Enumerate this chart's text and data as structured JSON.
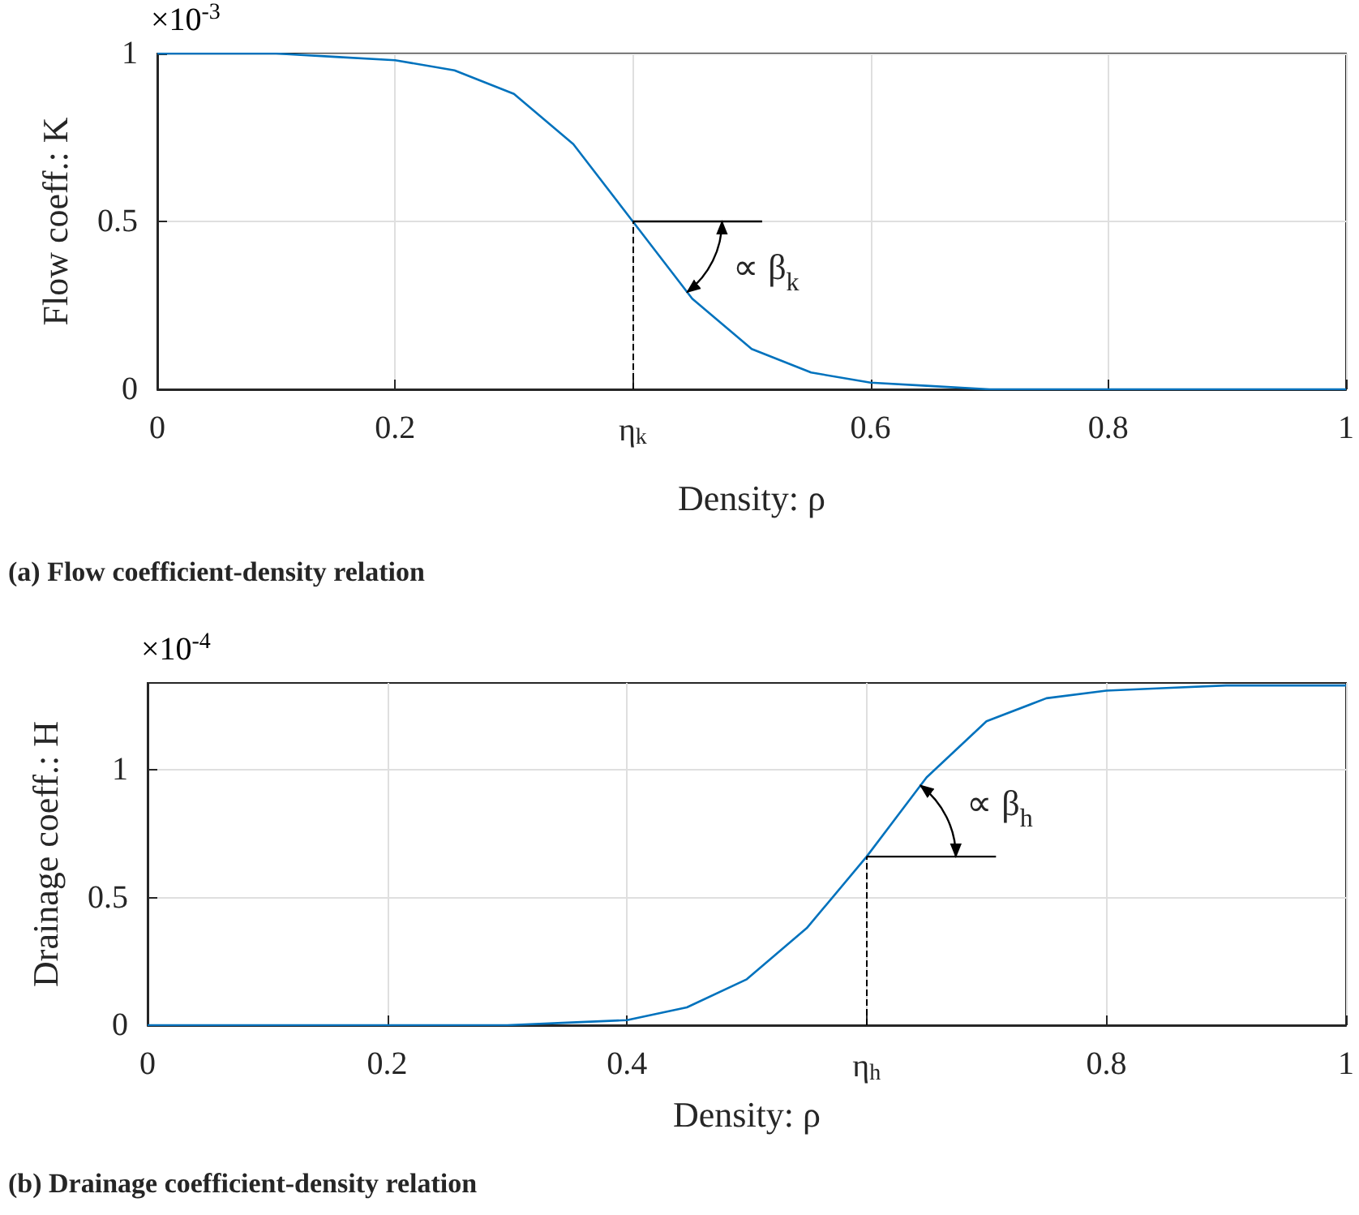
{
  "chart_data": [
    {
      "type": "line",
      "title": "(a) Flow coefficient-density relation",
      "xlabel": "Density: ρ",
      "ylabel": "Flow coeff.: K",
      "x": [
        0,
        0.05,
        0.1,
        0.15,
        0.2,
        0.25,
        0.3,
        0.35,
        0.4,
        0.45,
        0.5,
        0.55,
        0.6,
        0.65,
        0.7,
        0.75,
        0.8,
        0.85,
        0.9,
        0.95,
        1
      ],
      "series": [
        {
          "color": "#0072bd",
          "values": [
            1,
            1,
            1,
            0.99,
            0.98,
            0.95,
            0.88,
            0.73,
            0.5,
            0.27,
            0.12,
            0.05,
            0.02,
            0.01,
            0,
            0,
            0,
            0,
            0,
            0,
            0
          ]
        }
      ],
      "xlim": [
        0,
        1
      ],
      "xticks": [
        0,
        0.2,
        {
          "value": 0.4,
          "label": "η$_{k}$"
        },
        0.6,
        0.8,
        1
      ],
      "ylim": [
        0,
        1
      ],
      "yticks": [
        0,
        0.5,
        1
      ],
      "grid": true,
      "marker": "none",
      "ref_lines": [
        {
          "axis": "x",
          "value": 0.4,
          "line_style": "dashed",
          "color": "#000000"
        }
      ],
      "annotations": [
        "×10$^{-3}$",
        {
          "text": "∝ β$_{k}$",
          "x": 0.4,
          "y": 0.5
        }
      ]
    },
    {
      "type": "line",
      "title": "(b) Drainage coefficient-density relation",
      "xlabel": "Density: ρ",
      "ylabel": "Drainage coeff.: H",
      "x": [
        0,
        0.05,
        0.1,
        0.15,
        0.2,
        0.25,
        0.3,
        0.35,
        0.4,
        0.45,
        0.5,
        0.55,
        0.6,
        0.65,
        0.7,
        0.75,
        0.8,
        0.85,
        0.9,
        0.95,
        1
      ],
      "series": [
        {
          "color": "#0072bd",
          "values": [
            0,
            0,
            0,
            0,
            0,
            0,
            0,
            0.01,
            0.02,
            0.07,
            0.18,
            0.38,
            0.66,
            0.97,
            1.19,
            1.28,
            1.31,
            1.32,
            1.33,
            1.33,
            1.33
          ]
        }
      ],
      "xlim": [
        0,
        1
      ],
      "xticks": [
        0,
        0.2,
        0.4,
        {
          "value": 0.6,
          "label": "η$_{h}$"
        },
        0.8,
        1
      ],
      "ylim": [
        0,
        1.34
      ],
      "yticks": [
        0,
        0.5,
        1
      ],
      "grid": true,
      "marker": "none",
      "ref_lines": [
        {
          "axis": "x",
          "value": 0.6,
          "line_style": "dashed",
          "color": "#000000"
        }
      ],
      "annotations": [
        "×10$^{-4}$",
        {
          "text": "∝ β$_{h}$",
          "x": 0.6,
          "y": 0.66
        }
      ]
    }
  ]
}
